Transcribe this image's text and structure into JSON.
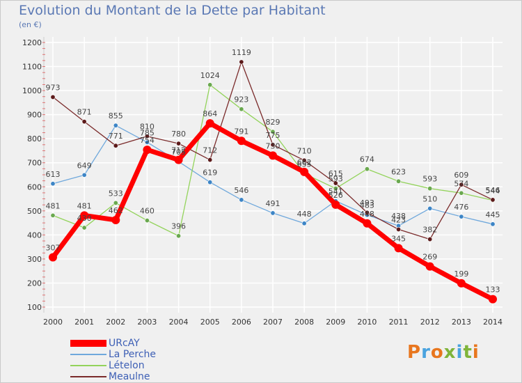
{
  "header": {
    "title": "Evolution du Montant de la Dette par Habitant",
    "subtitle": "(en €)"
  },
  "logo": {
    "text": "Proxiti",
    "colors": [
      "#e8761e",
      "#4aa3df",
      "#e8761e",
      "#7fb43a",
      "#4aa3df",
      "#7fb43a",
      "#e8761e"
    ]
  },
  "chart_data": {
    "type": "line",
    "title": "Evolution du Montant de la Dette par Habitant",
    "subtitle": "(en €)",
    "xlabel": "",
    "ylabel": "",
    "x": [
      "2000",
      "2001",
      "2002",
      "2003",
      "2004",
      "2005",
      "2006",
      "2007",
      "2008",
      "2009",
      "2010",
      "2011",
      "2012",
      "2013",
      "2014"
    ],
    "yticks": [
      100,
      200,
      300,
      400,
      500,
      600,
      700,
      800,
      900,
      1000,
      1100,
      1200
    ],
    "ylim": [
      100,
      1200
    ],
    "grid": true,
    "legend_position": "bottom-left",
    "series": [
      {
        "name": "URcAY",
        "color": "#ff0000",
        "width": 7,
        "marker": "#ff0000",
        "values": [
          307,
          481,
          462,
          754,
          712,
          864,
          791,
          730,
          662,
          526,
          448,
          345,
          269,
          199,
          133
        ],
        "labels": [
          "307",
          "481",
          "462",
          "754",
          "712",
          "864",
          "791",
          "730",
          "662",
          "526",
          "448",
          "345",
          "269",
          "199",
          "133"
        ]
      },
      {
        "name": "La Perche",
        "color": "#6fa8dc",
        "width": 1.3,
        "marker": "#3d85c6",
        "values": [
          613,
          649,
          855,
          785,
          705,
          619,
          546,
          491,
          448,
          541,
          483,
          438,
          510,
          476,
          445
        ],
        "labels": [
          "613",
          "649",
          "855",
          "785",
          "705",
          "619",
          "546",
          "491",
          "448",
          "541",
          "483",
          "438",
          "510",
          "476",
          "445"
        ]
      },
      {
        "name": "Lételon",
        "color": "#93d35b",
        "width": 1.3,
        "marker": "#6aa84f",
        "values": [
          481,
          430,
          533,
          460,
          396,
          1024,
          923,
          829,
          655,
          593,
          674,
          623,
          593,
          574,
          544
        ],
        "labels": [
          "481",
          "430",
          "533",
          "460",
          "396",
          "1024",
          "923",
          "829",
          "655",
          "593",
          "674",
          "623",
          "593",
          "574",
          "544"
        ]
      },
      {
        "name": "Meaulne",
        "color": "#7a2a2a",
        "width": 1.3,
        "marker": "#5c1a1a",
        "values": [
          973,
          871,
          771,
          810,
          780,
          712,
          1119,
          775,
          710,
          615,
          493,
          423,
          382,
          609,
          546
        ],
        "labels": [
          "973",
          "871",
          "771",
          "810",
          "780",
          "712",
          "1119",
          "775",
          "710",
          "615",
          "493",
          "423",
          "382",
          "609",
          "546"
        ]
      }
    ]
  }
}
